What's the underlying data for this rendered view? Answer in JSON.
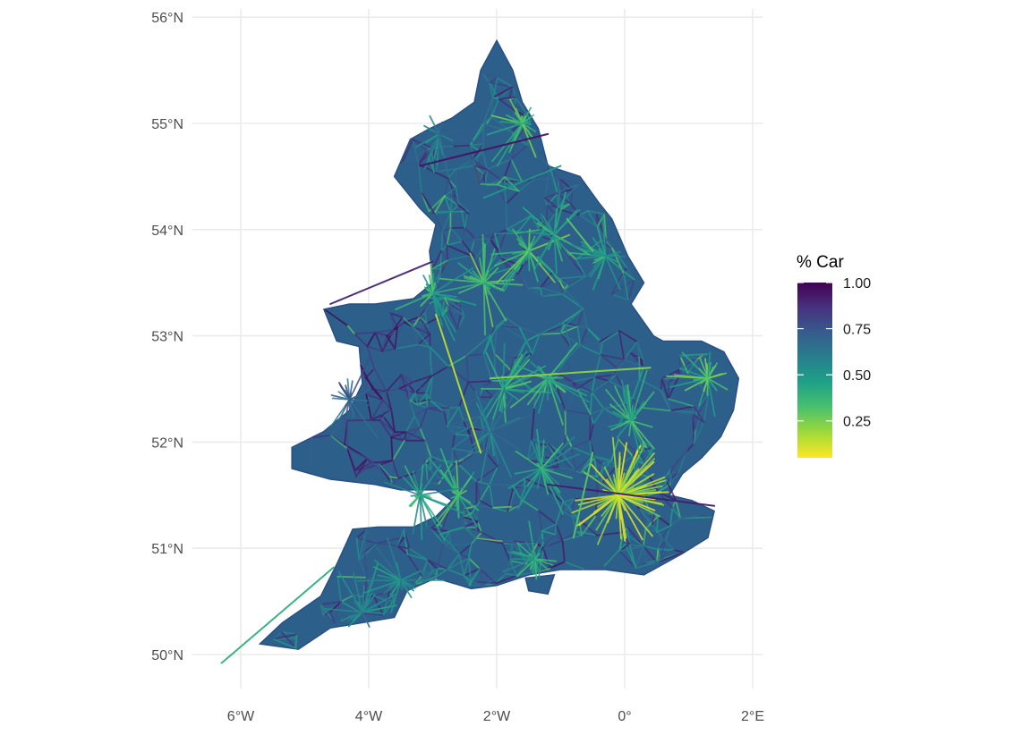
{
  "chart_data": {
    "type": "map",
    "title": "",
    "xlabel": "",
    "ylabel": "",
    "x_axis": {
      "ticks": [
        {
          "value": -6,
          "label": "6°W"
        },
        {
          "value": -4,
          "label": "4°W"
        },
        {
          "value": -2,
          "label": "2°W"
        },
        {
          "value": 0,
          "label": "0°"
        },
        {
          "value": 2,
          "label": "2°E"
        }
      ],
      "range": [
        -6.4,
        2.1
      ]
    },
    "y_axis": {
      "ticks": [
        {
          "value": 50,
          "label": "50°N"
        },
        {
          "value": 51,
          "label": "51°N"
        },
        {
          "value": 52,
          "label": "52°N"
        },
        {
          "value": 53,
          "label": "53°N"
        },
        {
          "value": 54,
          "label": "54°N"
        },
        {
          "value": 55,
          "label": "55°N"
        },
        {
          "value": 56,
          "label": "56°N"
        }
      ],
      "range": [
        49.8,
        56.1
      ]
    },
    "grid": true,
    "legend": {
      "title": "% Car",
      "placement": "right",
      "scale": "viridis-reversed",
      "range": [
        0.05,
        1.0
      ],
      "ticks": [
        {
          "value": 1.0,
          "label": "1.00"
        },
        {
          "value": 0.75,
          "label": "0.75"
        },
        {
          "value": 0.5,
          "label": "0.50"
        },
        {
          "value": 0.25,
          "label": "0.25"
        }
      ],
      "colors": [
        "#fde725",
        "#a0da39",
        "#4ac16d",
        "#1fa187",
        "#277f8e",
        "#365c8d",
        "#46327e",
        "#440154"
      ]
    },
    "hubs": [
      {
        "lon": -0.1,
        "lat": 51.5,
        "pct_car": 0.1
      },
      {
        "lon": -2.2,
        "lat": 53.5,
        "pct_car": 0.3
      },
      {
        "lon": -1.5,
        "lat": 53.8,
        "pct_car": 0.3
      },
      {
        "lon": -1.9,
        "lat": 52.5,
        "pct_car": 0.35
      },
      {
        "lon": -2.6,
        "lat": 51.5,
        "pct_car": 0.35
      },
      {
        "lon": -1.6,
        "lat": 55.0,
        "pct_car": 0.3
      },
      {
        "lon": -1.2,
        "lat": 52.6,
        "pct_car": 0.35
      },
      {
        "lon": 1.3,
        "lat": 52.6,
        "pct_car": 0.3
      },
      {
        "lon": 0.1,
        "lat": 52.2,
        "pct_car": 0.35
      },
      {
        "lon": -1.3,
        "lat": 51.75,
        "pct_car": 0.4
      },
      {
        "lon": -1.4,
        "lat": 50.9,
        "pct_car": 0.4
      },
      {
        "lon": -3.0,
        "lat": 53.4,
        "pct_car": 0.35
      },
      {
        "lon": -4.1,
        "lat": 50.4,
        "pct_car": 0.5
      },
      {
        "lon": -3.5,
        "lat": 50.7,
        "pct_car": 0.5
      },
      {
        "lon": -1.1,
        "lat": 53.95,
        "pct_car": 0.4
      },
      {
        "lon": -0.3,
        "lat": 53.75,
        "pct_car": 0.4
      },
      {
        "lon": -3.2,
        "lat": 51.5,
        "pct_car": 0.4
      },
      {
        "lon": -2.9,
        "lat": 54.9,
        "pct_car": 0.55
      },
      {
        "lon": -4.3,
        "lat": 52.4,
        "pct_car": 0.65
      },
      {
        "lon": -2.1,
        "lat": 52.1,
        "pct_car": 0.55
      }
    ]
  }
}
